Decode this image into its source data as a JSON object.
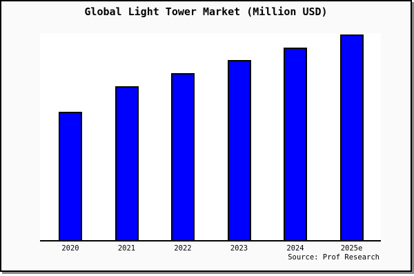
{
  "title": "Global Light Tower Market (Million USD)",
  "source_credit": "Source: Prof Research",
  "chart_data": {
    "type": "bar",
    "title": "Global Light Tower Market (Million USD)",
    "categories": [
      "2020",
      "2021",
      "2022",
      "2023",
      "2024",
      "2025e"
    ],
    "values": [
      62.4,
      74.8,
      81.2,
      87.6,
      93.6,
      100.0
    ],
    "value_note": "relative scale, tallest bar (2025e) = 100; chart shows no y-axis ticks or labels",
    "xlabel": "",
    "ylabel": "",
    "ylim": [
      0,
      100.7
    ],
    "grid": false,
    "legend": "none",
    "y_axis_visible": false,
    "x_axis_line_visible": true,
    "annotations": [
      "Source: Prof Research"
    ]
  },
  "colors": {
    "bar_fill": "#0000ff",
    "bar_border": "#000000",
    "plot_background": "#ffffff",
    "canvas_background": "#fafafa",
    "frame_border": "#000000",
    "frame_shadow": "#8a8a8a",
    "text": "#000000"
  }
}
